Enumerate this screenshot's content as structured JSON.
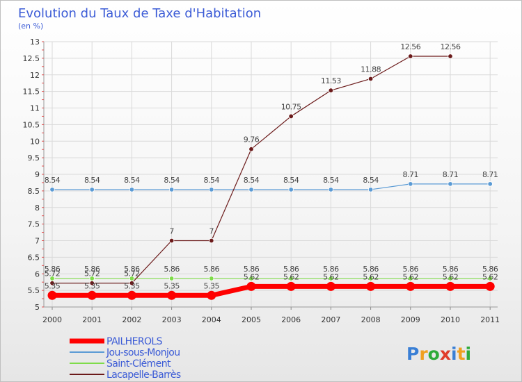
{
  "chart_data": {
    "type": "line",
    "title": "Evolution du Taux de Taxe d'Habitation",
    "subtitle": "(en %)",
    "x": [
      "2000",
      "2001",
      "2002",
      "2003",
      "2004",
      "2005",
      "2006",
      "2007",
      "2008",
      "2009",
      "2010",
      "2011"
    ],
    "yticks": [
      "5",
      "5.5",
      "6",
      "6.5",
      "7",
      "7.5",
      "8",
      "8.5",
      "9",
      "9.5",
      "10",
      "10.5",
      "11",
      "11.5",
      "12",
      "12.5",
      "13"
    ],
    "ylim": [
      5,
      13
    ],
    "grid": true,
    "legend_position": "bottom-left",
    "series": [
      {
        "name": "PAILHEROLS",
        "color": "#ff0000",
        "values": [
          5.35,
          5.35,
          5.35,
          5.35,
          5.35,
          5.62,
          5.62,
          5.62,
          5.62,
          5.62,
          5.62,
          5.62
        ],
        "labels": [
          "5.35",
          "5.35",
          "5.35",
          "5.35",
          "5.35",
          "5.62",
          "5.62",
          "5.62",
          "5.62",
          "5.62",
          "5.62",
          "5.62"
        ]
      },
      {
        "name": "Jou-sous-Monjou",
        "color": "#5b9bd5",
        "values": [
          8.54,
          8.54,
          8.54,
          8.54,
          8.54,
          8.54,
          8.54,
          8.54,
          8.54,
          8.71,
          8.71,
          8.71
        ],
        "labels": [
          "8.54",
          "8.54",
          "8.54",
          "8.54",
          "8.54",
          "8.54",
          "8.54",
          "8.54",
          "8.54",
          "8.71",
          "8.71",
          "8.71"
        ]
      },
      {
        "name": "Saint-Clément",
        "color": "#7fdc4a",
        "values": [
          5.86,
          5.86,
          5.86,
          5.86,
          5.86,
          5.86,
          5.86,
          5.86,
          5.86,
          5.86,
          5.86,
          5.86
        ],
        "labels": [
          "5.86",
          "5.86",
          "5.86",
          "5.86",
          "5.86",
          "5.86",
          "5.86",
          "5.86",
          "5.86",
          "5.86",
          "5.86",
          "5.86"
        ]
      },
      {
        "name": "Lacapelle-Barrès",
        "color": "#6b1a1a",
        "values": [
          5.72,
          5.72,
          5.72,
          7,
          7,
          9.76,
          10.75,
          11.53,
          11.88,
          12.56,
          12.56,
          null
        ],
        "labels": [
          "5.72",
          "5.72",
          "5.72",
          "7",
          "7",
          "9.76",
          "10.75",
          "11.53",
          "11.88",
          "12.56",
          "12.56",
          ""
        ]
      }
    ]
  },
  "logo": {
    "text": "Proxiti"
  }
}
